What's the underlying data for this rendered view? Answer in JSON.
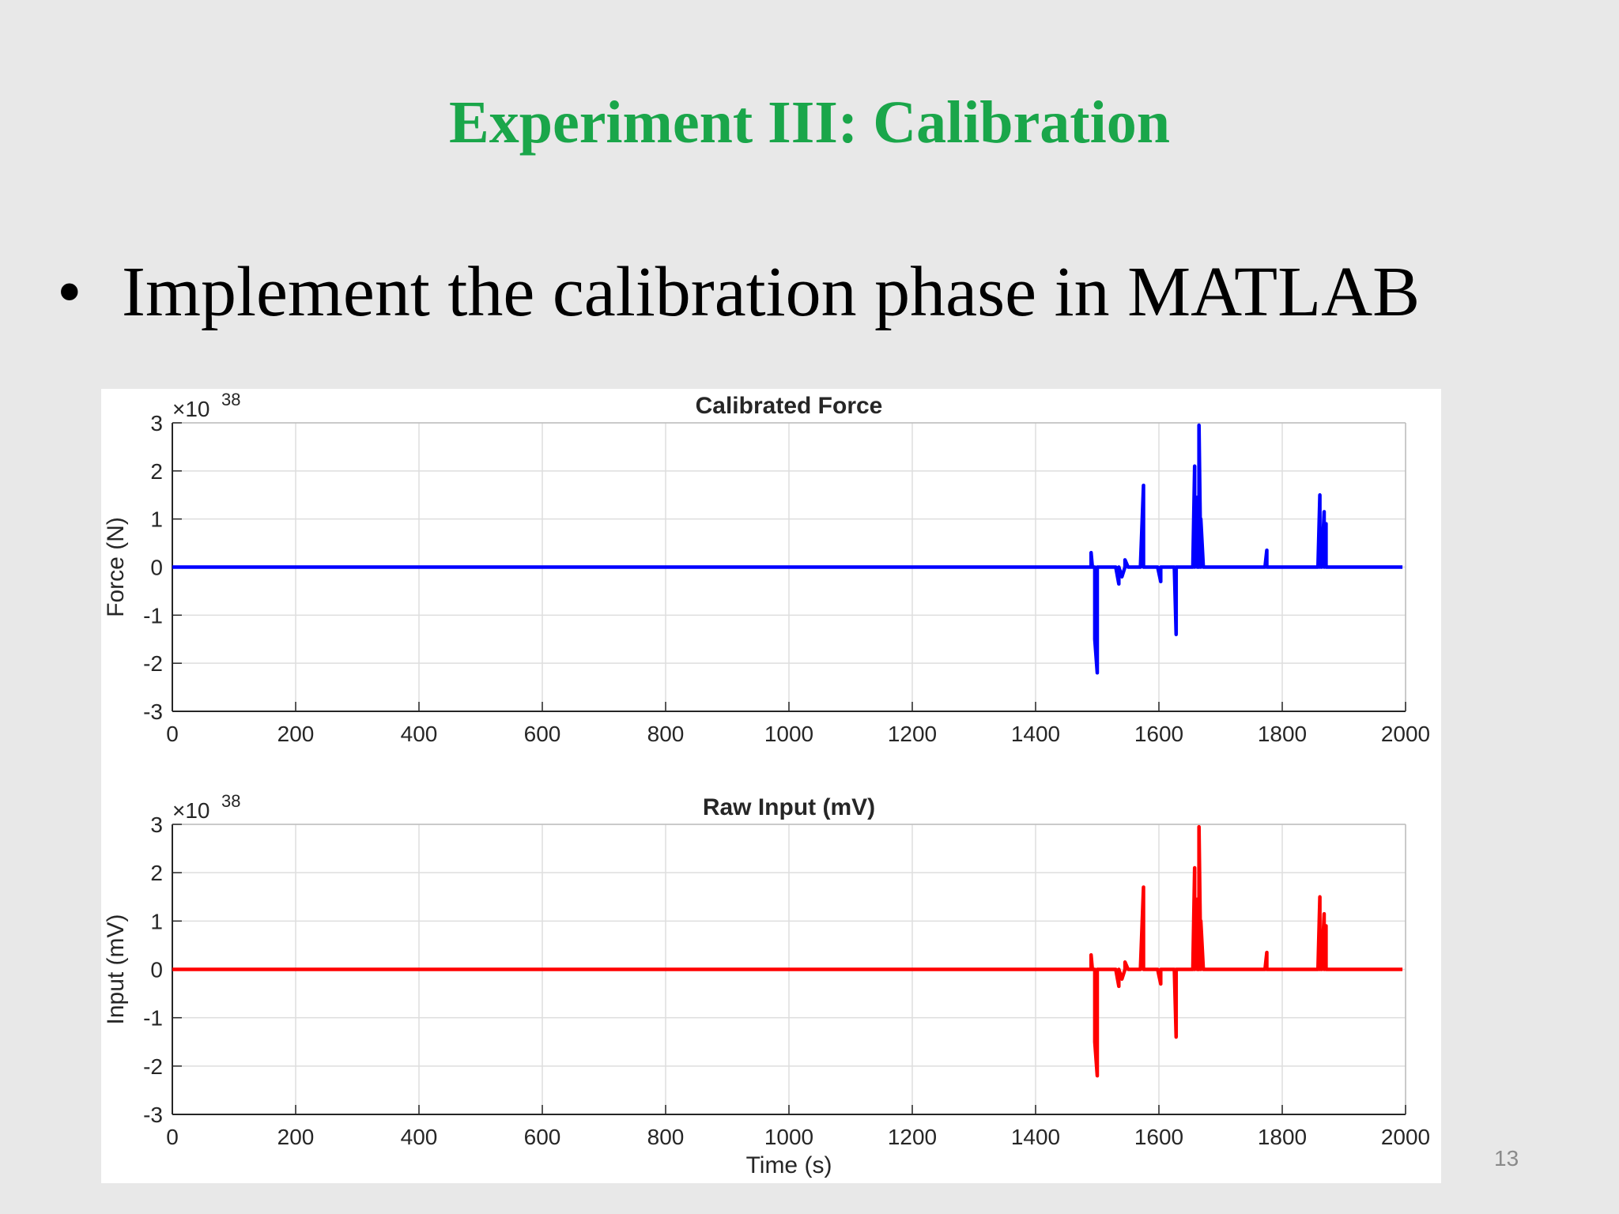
{
  "slide": {
    "title": "Experiment III: Calibration",
    "bullet_marker": "•",
    "bullet_text": "Implement the calibration phase in MATLAB",
    "slide_number": "13"
  },
  "chart_data": [
    {
      "type": "line",
      "title": "Calibrated Force",
      "xlabel": "",
      "ylabel": "Force (N)",
      "exponent_label": "×10",
      "exponent_power": "38",
      "xlim": [
        0,
        2000
      ],
      "ylim": [
        -3,
        3
      ],
      "xticks": [
        0,
        200,
        400,
        600,
        800,
        1000,
        1200,
        1400,
        1600,
        1800,
        2000
      ],
      "yticks": [
        -3,
        -2,
        -1,
        0,
        1,
        2,
        3
      ],
      "grid": true,
      "color": "#0000ff",
      "x": [
        0,
        1480,
        1490,
        1490,
        1492,
        1496,
        1496,
        1500,
        1500,
        1502,
        1530,
        1535,
        1535,
        1540,
        1545,
        1545,
        1550,
        1550,
        1553,
        1570,
        1575,
        1575,
        1578,
        1598,
        1603,
        1603,
        1606,
        1625,
        1628,
        1628,
        1631,
        1655,
        1658,
        1658,
        1662,
        1662,
        1665,
        1665,
        1668,
        1668,
        1672,
        1672,
        1675,
        1772,
        1775,
        1775,
        1778,
        1858,
        1861,
        1861,
        1864,
        1864,
        1868,
        1868,
        1871,
        1871,
        1874,
        1995
      ],
      "y": [
        0,
        0,
        0,
        0.3,
        0,
        0,
        -1.5,
        -2.2,
        0,
        0,
        0,
        -0.35,
        0,
        -0.2,
        0,
        0.15,
        0,
        0,
        0,
        0,
        1.7,
        0,
        0,
        0,
        -0.3,
        0,
        0,
        0,
        -1.4,
        0,
        0,
        0,
        2.1,
        0,
        1.45,
        0,
        0,
        2.95,
        0,
        1.0,
        0,
        0,
        0,
        0,
        0.35,
        0,
        0,
        0,
        1.5,
        0,
        0.5,
        0,
        1.15,
        0,
        0.9,
        0,
        0,
        0
      ]
    },
    {
      "type": "line",
      "title": "Raw Input (mV)",
      "xlabel": "Time (s)",
      "ylabel": "Input (mV)",
      "exponent_label": "×10",
      "exponent_power": "38",
      "xlim": [
        0,
        2000
      ],
      "ylim": [
        -3,
        3
      ],
      "xticks": [
        0,
        200,
        400,
        600,
        800,
        1000,
        1200,
        1400,
        1600,
        1800,
        2000
      ],
      "yticks": [
        -3,
        -2,
        -1,
        0,
        1,
        2,
        3
      ],
      "grid": true,
      "color": "#ff0000",
      "x": [
        0,
        1480,
        1490,
        1490,
        1492,
        1496,
        1496,
        1500,
        1500,
        1502,
        1530,
        1535,
        1535,
        1540,
        1545,
        1545,
        1550,
        1550,
        1553,
        1570,
        1575,
        1575,
        1578,
        1598,
        1603,
        1603,
        1606,
        1625,
        1628,
        1628,
        1631,
        1655,
        1658,
        1658,
        1662,
        1662,
        1665,
        1665,
        1668,
        1668,
        1672,
        1672,
        1675,
        1772,
        1775,
        1775,
        1778,
        1858,
        1861,
        1861,
        1864,
        1864,
        1868,
        1868,
        1871,
        1871,
        1874,
        1995
      ],
      "y": [
        0,
        0,
        0,
        0.3,
        0,
        0,
        -1.5,
        -2.2,
        0,
        0,
        0,
        -0.35,
        0,
        -0.2,
        0,
        0.15,
        0,
        0,
        0,
        0,
        1.7,
        0,
        0,
        0,
        -0.3,
        0,
        0,
        0,
        -1.4,
        0,
        0,
        0,
        2.1,
        0,
        1.45,
        0,
        0,
        2.95,
        0,
        1.0,
        0,
        0,
        0,
        0,
        0.35,
        0,
        0,
        0,
        1.5,
        0,
        0.5,
        0,
        1.15,
        0,
        0.9,
        0,
        0,
        0
      ]
    }
  ]
}
